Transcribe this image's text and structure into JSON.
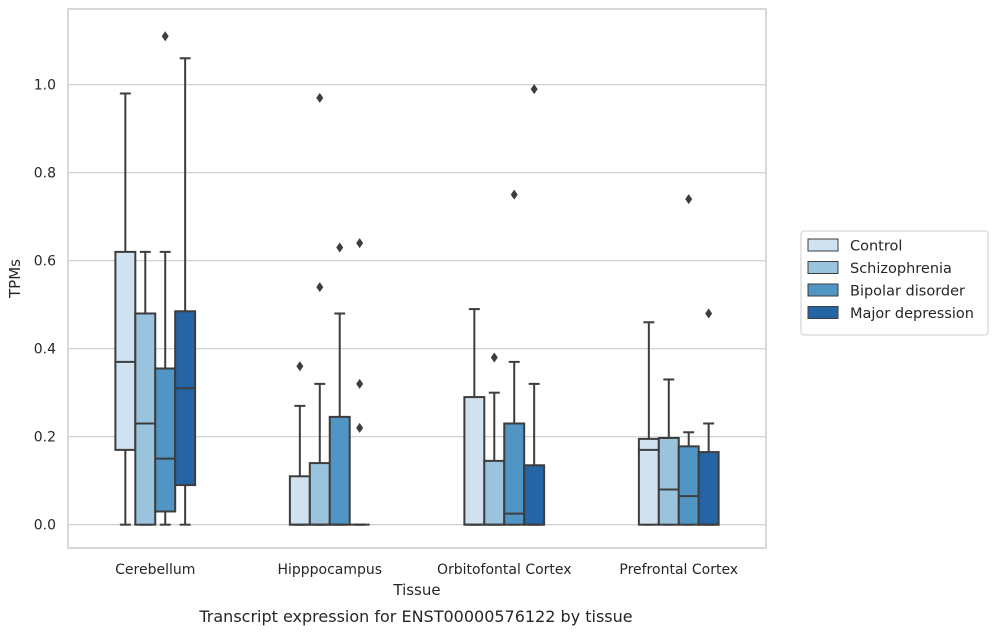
{
  "chart_data": {
    "type": "box",
    "xlabel": "Tissue",
    "ylabel": "TPMs",
    "caption": "Transcript expression for ENST00000576122 by tissue",
    "ylim": [
      -0.053,
      1.172
    ],
    "yticks": [
      0.0,
      0.2,
      0.4,
      0.6,
      0.8,
      1.0
    ],
    "ytick_labels": [
      "0.0",
      "0.2",
      "0.4",
      "0.6",
      "0.8",
      "1.0"
    ],
    "grid": "horizontal",
    "legend_position": "right",
    "categories": [
      "Cerebellum",
      "Hipppocampus",
      "Orbitofontal Cortex",
      "Prefrontal Cortex"
    ],
    "series": [
      {
        "name": "Control",
        "color": "#d0e1f0",
        "boxes": [
          {
            "whisker_low": 0.0,
            "q1": 0.17,
            "median": 0.37,
            "q3": 0.62,
            "whisker_high": 0.98,
            "outliers": []
          },
          {
            "whisker_low": 0.0,
            "q1": 0.0,
            "median": 0.0,
            "q3": 0.11,
            "whisker_high": 0.27,
            "outliers": [
              0.36
            ]
          },
          {
            "whisker_low": 0.0,
            "q1": 0.0,
            "median": 0.0,
            "q3": 0.29,
            "whisker_high": 0.49,
            "outliers": []
          },
          {
            "whisker_low": 0.0,
            "q1": 0.0,
            "median": 0.17,
            "q3": 0.195,
            "whisker_high": 0.46,
            "outliers": []
          }
        ]
      },
      {
        "name": "Schizophrenia",
        "color": "#9ac4dd",
        "boxes": [
          {
            "whisker_low": 0.0,
            "q1": 0.0,
            "median": 0.23,
            "q3": 0.48,
            "whisker_high": 0.62,
            "outliers": []
          },
          {
            "whisker_low": 0.0,
            "q1": 0.0,
            "median": 0.0,
            "q3": 0.14,
            "whisker_high": 0.32,
            "outliers": [
              0.54,
              0.97
            ]
          },
          {
            "whisker_low": 0.0,
            "q1": 0.0,
            "median": 0.0,
            "q3": 0.145,
            "whisker_high": 0.3,
            "outliers": [
              0.38
            ]
          },
          {
            "whisker_low": 0.0,
            "q1": 0.0,
            "median": 0.08,
            "q3": 0.197,
            "whisker_high": 0.33,
            "outliers": []
          }
        ]
      },
      {
        "name": "Bipolar disorder",
        "color": "#5195c4",
        "boxes": [
          {
            "whisker_low": 0.0,
            "q1": 0.03,
            "median": 0.15,
            "q3": 0.355,
            "whisker_high": 0.62,
            "outliers": [
              1.11
            ]
          },
          {
            "whisker_low": 0.0,
            "q1": 0.0,
            "median": 0.0,
            "q3": 0.245,
            "whisker_high": 0.48,
            "outliers": [
              0.63
            ]
          },
          {
            "whisker_low": 0.0,
            "q1": 0.0,
            "median": 0.025,
            "q3": 0.23,
            "whisker_high": 0.37,
            "outliers": [
              0.75
            ]
          },
          {
            "whisker_low": 0.0,
            "q1": 0.0,
            "median": 0.065,
            "q3": 0.178,
            "whisker_high": 0.21,
            "outliers": [
              0.74
            ]
          }
        ]
      },
      {
        "name": "Major depression",
        "color": "#2565a5",
        "boxes": [
          {
            "whisker_low": 0.0,
            "q1": 0.09,
            "median": 0.31,
            "q3": 0.485,
            "whisker_high": 1.06,
            "outliers": []
          },
          {
            "whisker_low": 0.0,
            "q1": 0.0,
            "median": 0.0,
            "q3": 0.0,
            "whisker_high": 0.0,
            "outliers": [
              0.22,
              0.32,
              0.64
            ]
          },
          {
            "whisker_low": 0.0,
            "q1": 0.0,
            "median": 0.0,
            "q3": 0.135,
            "whisker_high": 0.32,
            "outliers": [
              0.99
            ]
          },
          {
            "whisker_low": 0.0,
            "q1": 0.0,
            "median": 0.0,
            "q3": 0.165,
            "whisker_high": 0.23,
            "outliers": [
              0.48
            ]
          }
        ]
      }
    ]
  }
}
